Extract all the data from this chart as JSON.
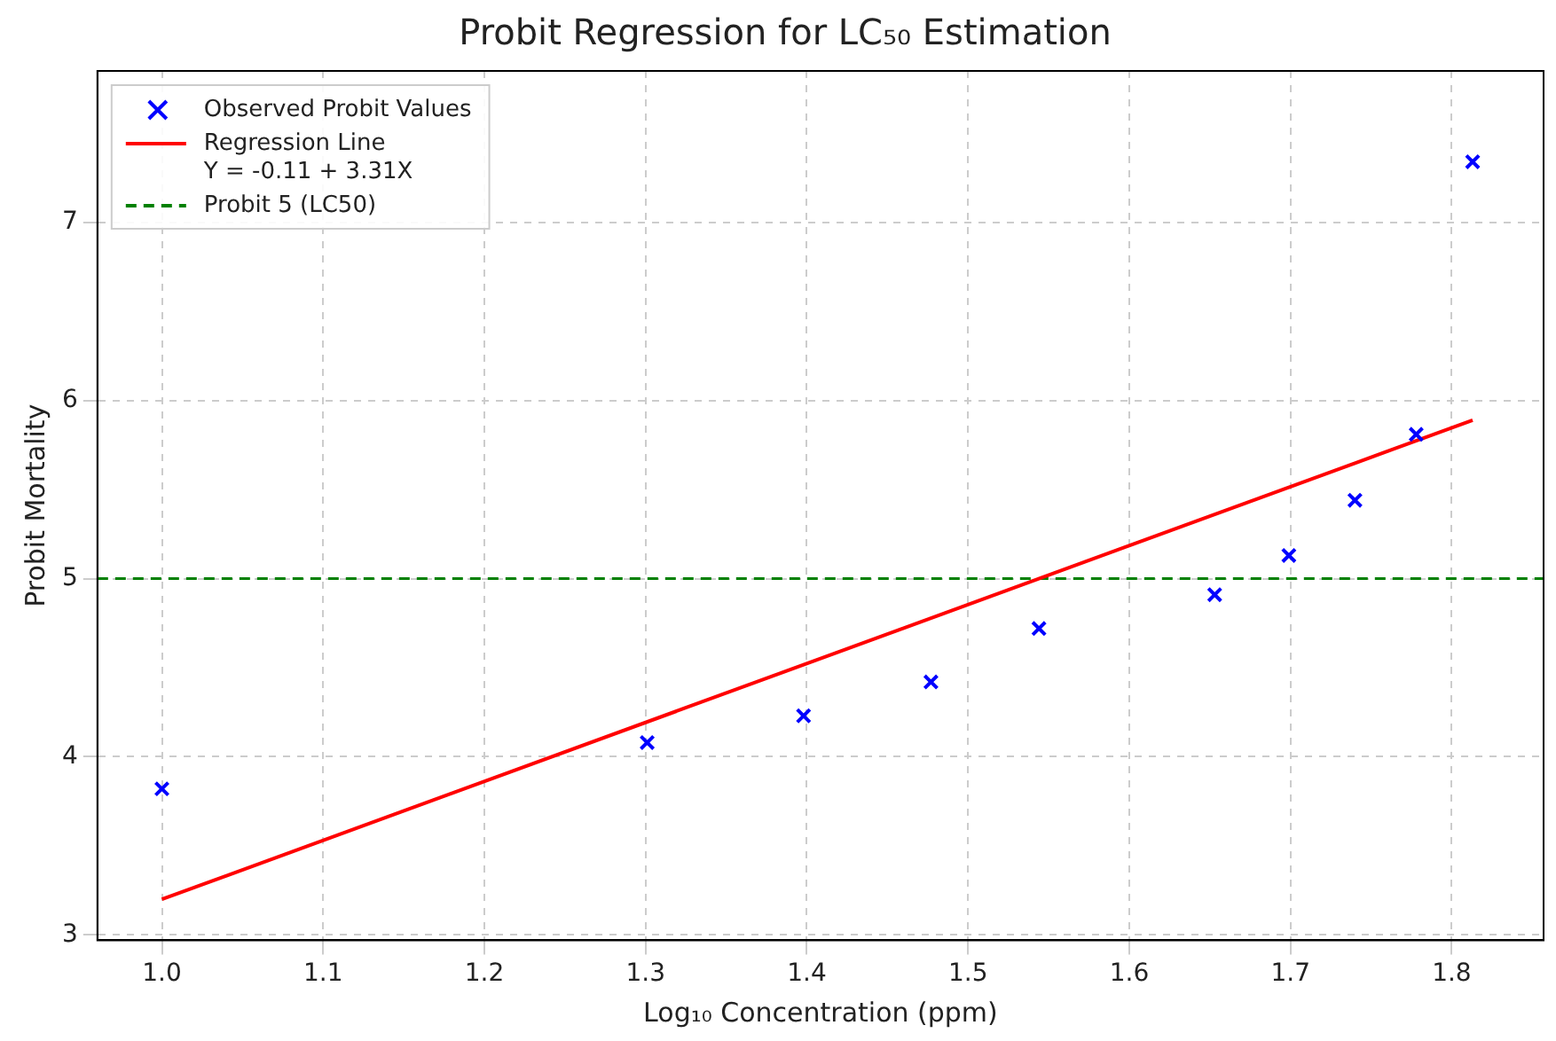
{
  "chart_data": {
    "type": "scatter",
    "title": "Probit Regression for LC₅₀ Estimation",
    "xlabel": "Log₁₀ Concentration (ppm)",
    "ylabel": "Probit Mortality",
    "xlim": [
      0.96,
      1.857
    ],
    "xticks": [
      {
        "value": 1,
        "label": "1.0"
      },
      1.1,
      1.2,
      1.3,
      1.4,
      1.5,
      1.6,
      1.7,
      1.8
    ],
    "ylim": [
      2.97,
      7.85
    ],
    "yticks": [
      3,
      4,
      5,
      6,
      7
    ],
    "grid": true,
    "legend": "top left",
    "series": [
      {
        "name": "Observed Probit Values",
        "marker": "cross",
        "color": "#0000ff",
        "x": [
          1.0,
          1.301,
          1.398,
          1.477,
          1.544,
          1.653,
          1.699,
          1.74,
          1.778,
          1.813
        ],
        "values": [
          3.82,
          4.08,
          4.23,
          4.42,
          4.72,
          4.91,
          5.13,
          5.44,
          5.81,
          7.34
        ]
      },
      {
        "name": "Regression Line\nY = -0.11 + 3.31X",
        "type": "line",
        "color": "#ff0000",
        "x": [
          1.0,
          1.813
        ],
        "values": [
          3.2,
          5.89
        ]
      }
    ],
    "ref_lines": [
      {
        "axis": "y",
        "value": 5,
        "label": "Probit 5 (LC50)",
        "color": "#008000",
        "line_style": "dashed"
      }
    ]
  }
}
